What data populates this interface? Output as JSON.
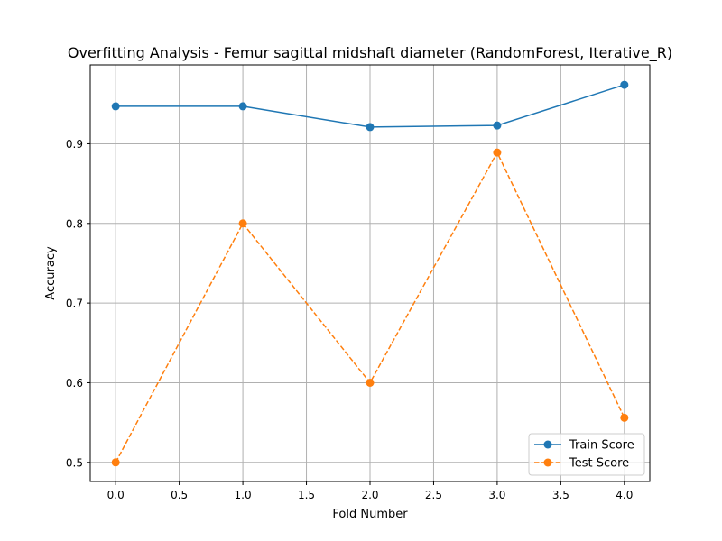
{
  "chart_data": {
    "type": "line",
    "title": "Overfitting Analysis - Femur sagittal midshaft diameter (RandomForest, Iterative_R)",
    "xlabel": "Fold Number",
    "ylabel": "Accuracy",
    "xlim": [
      -0.2,
      4.2
    ],
    "ylim": [
      0.476,
      0.999
    ],
    "grid": true,
    "legend_position": "lower-right",
    "x_ticks": [
      0.0,
      0.5,
      1.0,
      1.5,
      2.0,
      2.5,
      3.0,
      3.5,
      4.0
    ],
    "x_tick_labels": [
      "0.0",
      "0.5",
      "1.0",
      "1.5",
      "2.0",
      "2.5",
      "3.0",
      "3.5",
      "4.0"
    ],
    "y_ticks": [
      0.5,
      0.6,
      0.7,
      0.8,
      0.9
    ],
    "y_tick_labels": [
      "0.5",
      "0.6",
      "0.7",
      "0.8",
      "0.9"
    ],
    "x": [
      0,
      1,
      2,
      3,
      4
    ],
    "series": [
      {
        "name": "Train Score",
        "values": [
          0.947,
          0.947,
          0.921,
          0.923,
          0.974
        ],
        "color": "#1f77b4",
        "linestyle": "solid",
        "marker": "circle"
      },
      {
        "name": "Test Score",
        "values": [
          0.5,
          0.8,
          0.6,
          0.889,
          0.556
        ],
        "color": "#ff7f0e",
        "linestyle": "dashed",
        "marker": "circle"
      }
    ]
  }
}
